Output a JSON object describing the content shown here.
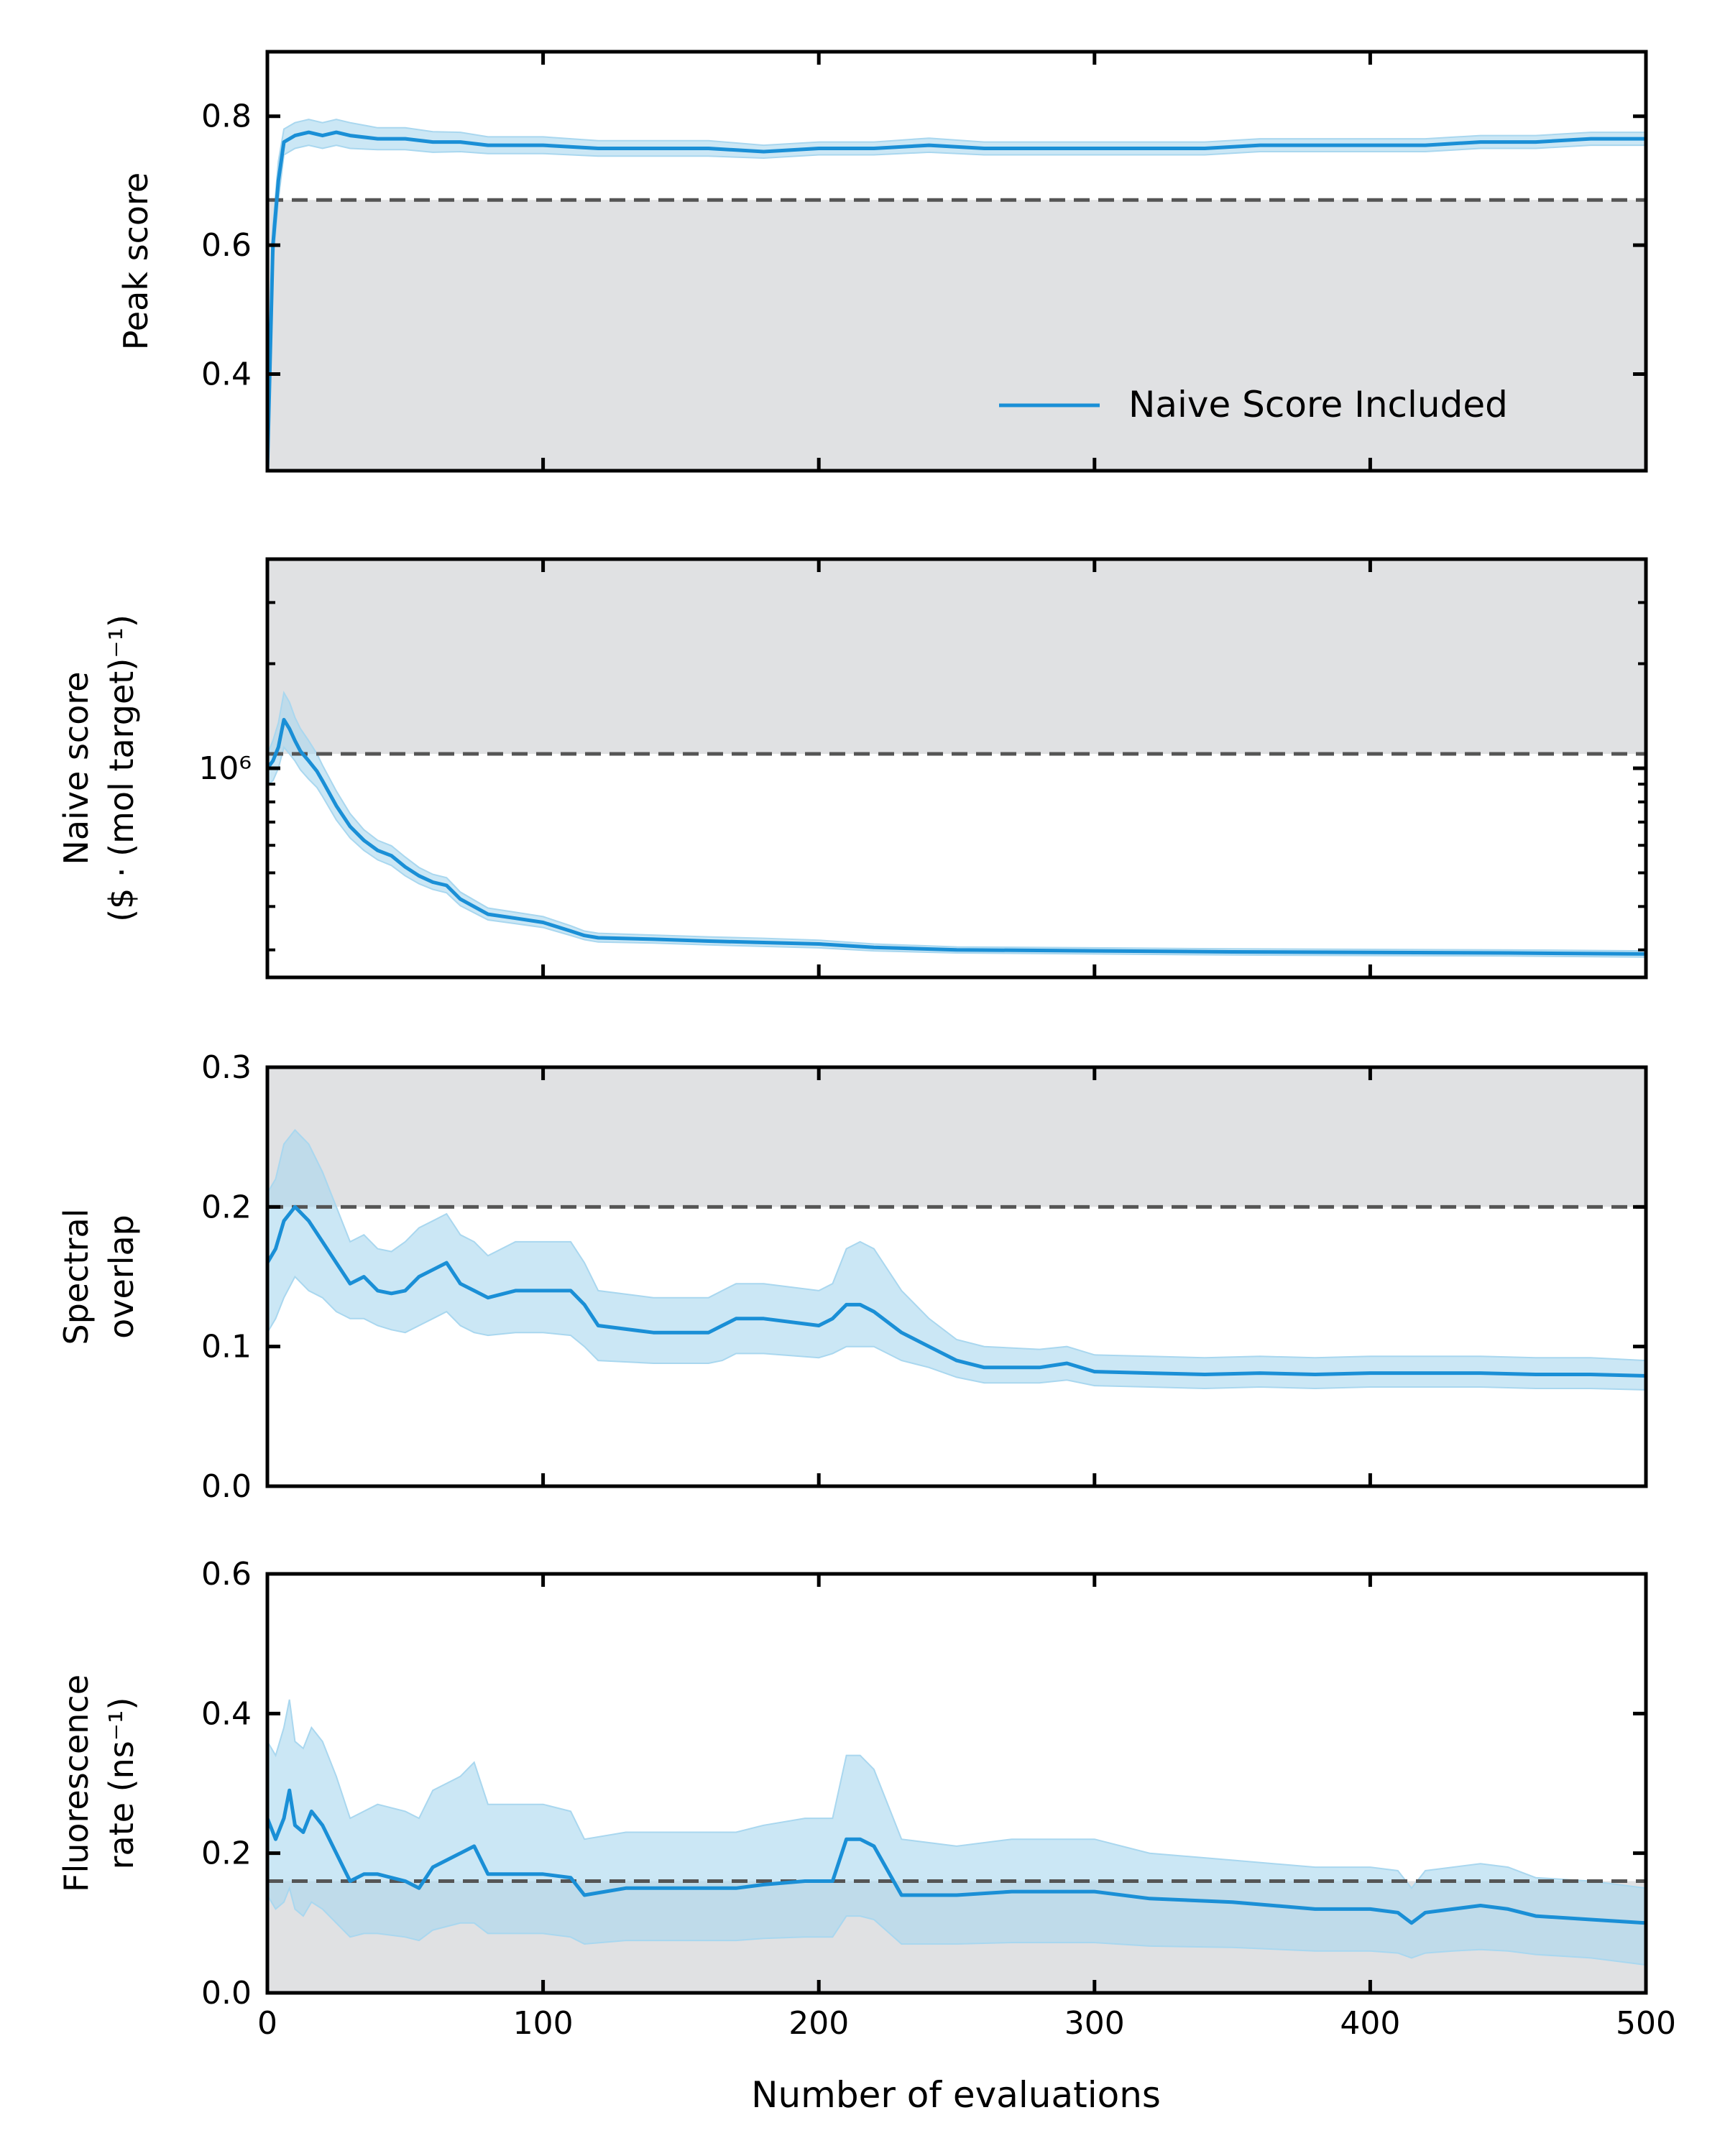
{
  "colors": {
    "line": "#1a8fd6",
    "band": "#a9d7ef",
    "shade": "#e0e1e3",
    "threshold": "#555555",
    "axis": "#000000"
  },
  "xlabel": "Number of evaluations",
  "xticks": [
    "0",
    "100",
    "200",
    "300",
    "400",
    "500"
  ],
  "chart_data": [
    {
      "type": "line",
      "panel": "peak",
      "ylabel": "Peak score",
      "xlim": [
        0,
        500
      ],
      "ylim": [
        0.25,
        0.9
      ],
      "yticks": [
        {
          "v": 0.4,
          "label": "0.4"
        },
        {
          "v": 0.6,
          "label": "0.6"
        },
        {
          "v": 0.8,
          "label": "0.8"
        }
      ],
      "threshold": 0.67,
      "shade": "below",
      "legend": {
        "label": "Naive Score Included",
        "position": "bottom-right"
      },
      "series": [
        {
          "name": "Naive Score Included",
          "x": [
            0,
            2,
            4,
            6,
            8,
            10,
            15,
            20,
            25,
            30,
            40,
            50,
            60,
            70,
            80,
            90,
            100,
            120,
            140,
            160,
            180,
            200,
            220,
            240,
            260,
            280,
            300,
            320,
            340,
            360,
            380,
            400,
            420,
            440,
            460,
            480,
            500
          ],
          "y": [
            0.25,
            0.6,
            0.7,
            0.76,
            0.765,
            0.77,
            0.775,
            0.77,
            0.775,
            0.77,
            0.765,
            0.765,
            0.76,
            0.76,
            0.755,
            0.755,
            0.755,
            0.75,
            0.75,
            0.75,
            0.745,
            0.75,
            0.75,
            0.755,
            0.75,
            0.75,
            0.75,
            0.75,
            0.75,
            0.755,
            0.755,
            0.755,
            0.755,
            0.76,
            0.76,
            0.765,
            0.765
          ],
          "lower": [
            0.25,
            0.57,
            0.67,
            0.74,
            0.745,
            0.75,
            0.755,
            0.75,
            0.755,
            0.75,
            0.748,
            0.748,
            0.744,
            0.745,
            0.742,
            0.742,
            0.742,
            0.738,
            0.738,
            0.738,
            0.735,
            0.74,
            0.74,
            0.744,
            0.74,
            0.74,
            0.74,
            0.74,
            0.74,
            0.745,
            0.745,
            0.745,
            0.745,
            0.75,
            0.75,
            0.755,
            0.755
          ],
          "upper": [
            0.25,
            0.63,
            0.73,
            0.78,
            0.785,
            0.79,
            0.795,
            0.79,
            0.795,
            0.79,
            0.782,
            0.782,
            0.776,
            0.775,
            0.768,
            0.768,
            0.768,
            0.762,
            0.762,
            0.762,
            0.755,
            0.76,
            0.76,
            0.766,
            0.76,
            0.76,
            0.76,
            0.76,
            0.76,
            0.765,
            0.765,
            0.765,
            0.765,
            0.77,
            0.77,
            0.775,
            0.775
          ]
        }
      ]
    },
    {
      "type": "line",
      "panel": "naive",
      "ylabel_line1": "Naive score",
      "ylabel_line2": "($ · (mol target)⁻¹)",
      "yscale": "log",
      "xlim": [
        0,
        500
      ],
      "ylim": [
        250000,
        4000000
      ],
      "yticks": [
        {
          "v": 1000000,
          "label": "10⁶"
        }
      ],
      "threshold": 1100000,
      "shade": "above",
      "series": [
        {
          "name": "Naive Score Included",
          "x": [
            0,
            2,
            4,
            6,
            8,
            10,
            12,
            15,
            18,
            20,
            25,
            30,
            35,
            40,
            45,
            50,
            55,
            60,
            65,
            70,
            80,
            90,
            100,
            110,
            115,
            120,
            140,
            160,
            180,
            200,
            220,
            250,
            300,
            350,
            400,
            450,
            500
          ],
          "y": [
            1000000,
            1050000,
            1150000,
            1380000,
            1300000,
            1200000,
            1120000,
            1050000,
            980000,
            920000,
            780000,
            680000,
            620000,
            580000,
            560000,
            520000,
            490000,
            470000,
            460000,
            420000,
            380000,
            370000,
            360000,
            340000,
            330000,
            325000,
            322000,
            318000,
            315000,
            312000,
            305000,
            300000,
            298000,
            296000,
            295000,
            294000,
            292000
          ],
          "lower": [
            900000,
            920000,
            1000000,
            1150000,
            1100000,
            1050000,
            990000,
            930000,
            880000,
            830000,
            710000,
            630000,
            580000,
            545000,
            525000,
            490000,
            465000,
            448000,
            438000,
            402000,
            366000,
            357000,
            348000,
            330000,
            321000,
            316000,
            314000,
            310000,
            307000,
            304000,
            298000,
            294000,
            292000,
            290000,
            289000,
            288000,
            286000
          ],
          "upper": [
            1100000,
            1200000,
            1350000,
            1650000,
            1550000,
            1400000,
            1300000,
            1200000,
            1100000,
            1020000,
            860000,
            740000,
            665000,
            620000,
            598000,
            555000,
            518000,
            495000,
            484000,
            440000,
            396000,
            385000,
            374000,
            352000,
            340000,
            335000,
            331000,
            327000,
            324000,
            320000,
            312000,
            306000,
            304000,
            302000,
            301000,
            300000,
            298000
          ]
        }
      ]
    },
    {
      "type": "line",
      "panel": "spectral",
      "ylabel_line1": "Spectral",
      "ylabel_line2": "overlap",
      "xlim": [
        0,
        500
      ],
      "ylim": [
        0,
        0.3
      ],
      "yticks": [
        {
          "v": 0,
          "label": "0.0"
        },
        {
          "v": 0.1,
          "label": "0.1"
        },
        {
          "v": 0.2,
          "label": "0.2"
        },
        {
          "v": 0.3,
          "label": "0.3"
        }
      ],
      "threshold": 0.2,
      "shade": "above",
      "series": [
        {
          "name": "Naive Score Included",
          "x": [
            0,
            3,
            6,
            10,
            15,
            20,
            25,
            30,
            35,
            40,
            45,
            50,
            55,
            60,
            65,
            70,
            75,
            80,
            90,
            100,
            110,
            115,
            120,
            140,
            160,
            165,
            170,
            180,
            200,
            205,
            210,
            215,
            220,
            230,
            240,
            250,
            260,
            280,
            290,
            300,
            320,
            340,
            360,
            380,
            400,
            420,
            440,
            460,
            480,
            500
          ],
          "y": [
            0.16,
            0.17,
            0.19,
            0.2,
            0.19,
            0.175,
            0.16,
            0.145,
            0.15,
            0.14,
            0.138,
            0.14,
            0.15,
            0.155,
            0.16,
            0.145,
            0.14,
            0.135,
            0.14,
            0.14,
            0.14,
            0.13,
            0.115,
            0.11,
            0.11,
            0.115,
            0.12,
            0.12,
            0.115,
            0.12,
            0.13,
            0.13,
            0.125,
            0.11,
            0.1,
            0.09,
            0.085,
            0.085,
            0.088,
            0.082,
            0.081,
            0.08,
            0.081,
            0.08,
            0.081,
            0.081,
            0.081,
            0.08,
            0.08,
            0.079
          ],
          "lower": [
            0.11,
            0.12,
            0.135,
            0.15,
            0.14,
            0.135,
            0.125,
            0.12,
            0.12,
            0.115,
            0.112,
            0.11,
            0.115,
            0.12,
            0.125,
            0.115,
            0.11,
            0.108,
            0.11,
            0.11,
            0.108,
            0.1,
            0.09,
            0.088,
            0.088,
            0.09,
            0.095,
            0.095,
            0.092,
            0.095,
            0.1,
            0.1,
            0.1,
            0.09,
            0.085,
            0.078,
            0.074,
            0.074,
            0.076,
            0.072,
            0.071,
            0.07,
            0.071,
            0.07,
            0.071,
            0.071,
            0.071,
            0.07,
            0.07,
            0.069
          ],
          "upper": [
            0.21,
            0.22,
            0.245,
            0.255,
            0.245,
            0.225,
            0.2,
            0.175,
            0.18,
            0.17,
            0.168,
            0.175,
            0.185,
            0.19,
            0.195,
            0.18,
            0.175,
            0.165,
            0.175,
            0.175,
            0.175,
            0.16,
            0.14,
            0.135,
            0.135,
            0.14,
            0.145,
            0.145,
            0.14,
            0.145,
            0.17,
            0.175,
            0.17,
            0.14,
            0.12,
            0.105,
            0.1,
            0.098,
            0.1,
            0.094,
            0.093,
            0.092,
            0.093,
            0.092,
            0.093,
            0.093,
            0.093,
            0.092,
            0.092,
            0.09
          ]
        }
      ]
    },
    {
      "type": "line",
      "panel": "fluor",
      "ylabel_line1": "Fluorescence",
      "ylabel_line2": "rate (ns⁻¹)",
      "xlim": [
        0,
        500
      ],
      "ylim": [
        0,
        0.6
      ],
      "yticks": [
        {
          "v": 0,
          "label": "0.0"
        },
        {
          "v": 0.2,
          "label": "0.2"
        },
        {
          "v": 0.4,
          "label": "0.4"
        },
        {
          "v": 0.6,
          "label": "0.6"
        }
      ],
      "threshold": 0.16,
      "shade": "below",
      "series": [
        {
          "name": "Naive Score Included",
          "x": [
            0,
            3,
            6,
            8,
            10,
            13,
            16,
            20,
            25,
            30,
            35,
            40,
            50,
            55,
            60,
            70,
            75,
            80,
            90,
            100,
            110,
            115,
            130,
            150,
            170,
            180,
            195,
            205,
            210,
            215,
            220,
            230,
            250,
            270,
            300,
            320,
            350,
            380,
            400,
            410,
            415,
            420,
            430,
            440,
            450,
            460,
            480,
            500
          ],
          "y": [
            0.25,
            0.22,
            0.25,
            0.29,
            0.24,
            0.23,
            0.26,
            0.24,
            0.2,
            0.16,
            0.17,
            0.17,
            0.16,
            0.15,
            0.18,
            0.2,
            0.21,
            0.17,
            0.17,
            0.17,
            0.165,
            0.14,
            0.15,
            0.15,
            0.15,
            0.155,
            0.16,
            0.16,
            0.22,
            0.22,
            0.21,
            0.14,
            0.14,
            0.145,
            0.145,
            0.135,
            0.13,
            0.12,
            0.12,
            0.115,
            0.1,
            0.115,
            0.12,
            0.125,
            0.12,
            0.11,
            0.105,
            0.1
          ],
          "lower": [
            0.14,
            0.12,
            0.13,
            0.15,
            0.12,
            0.11,
            0.13,
            0.12,
            0.1,
            0.08,
            0.085,
            0.085,
            0.08,
            0.075,
            0.09,
            0.1,
            0.1,
            0.085,
            0.085,
            0.085,
            0.08,
            0.07,
            0.075,
            0.075,
            0.075,
            0.078,
            0.08,
            0.08,
            0.11,
            0.11,
            0.105,
            0.07,
            0.07,
            0.072,
            0.072,
            0.067,
            0.065,
            0.06,
            0.06,
            0.057,
            0.05,
            0.057,
            0.06,
            0.062,
            0.06,
            0.055,
            0.05,
            0.04
          ],
          "upper": [
            0.36,
            0.34,
            0.38,
            0.42,
            0.36,
            0.35,
            0.38,
            0.36,
            0.31,
            0.25,
            0.26,
            0.27,
            0.26,
            0.25,
            0.29,
            0.31,
            0.33,
            0.27,
            0.27,
            0.27,
            0.26,
            0.22,
            0.23,
            0.23,
            0.23,
            0.24,
            0.25,
            0.25,
            0.34,
            0.34,
            0.32,
            0.22,
            0.21,
            0.22,
            0.22,
            0.2,
            0.19,
            0.18,
            0.18,
            0.175,
            0.15,
            0.175,
            0.18,
            0.185,
            0.18,
            0.165,
            0.16,
            0.15
          ]
        }
      ]
    }
  ]
}
